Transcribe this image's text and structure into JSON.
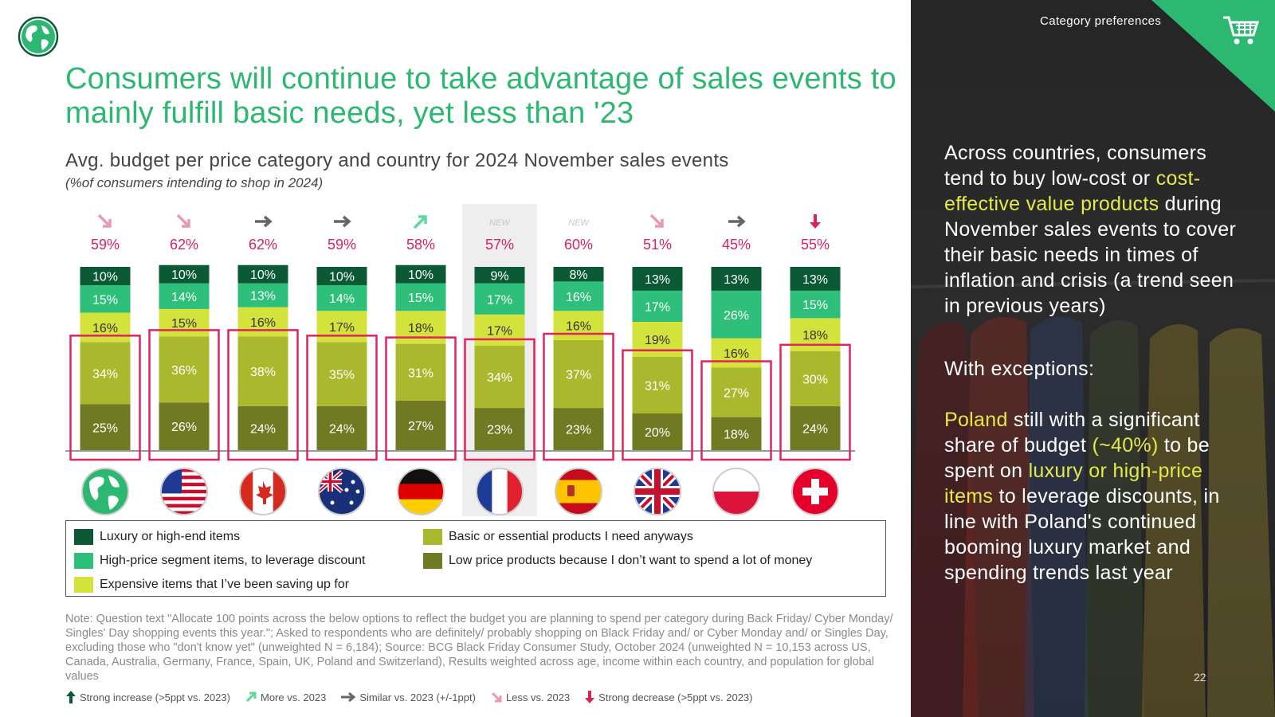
{
  "header": {
    "title": "Consumers will continue to take advantage of sales events to mainly fulfill basic needs, yet less than '23",
    "subtitle": "Avg. budget per price category and country for 2024 November sales events",
    "subnote": "(%of consumers intending to shop in 2024)"
  },
  "colors": {
    "accent": "#2db872",
    "luxury": "#0b5a35",
    "high_price": "#2ebf7a",
    "expensive": "#d4e23c",
    "basic": "#a9b82c",
    "low_price": "#6f7a22",
    "highlight_box": "#e0245e",
    "pct_text": "#d9245a",
    "dark_panel": "#2a2a2a",
    "panel_highlight": "#e5e84a"
  },
  "chart_data": {
    "type": "bar",
    "stacked": true,
    "categories": [
      "Global",
      "US",
      "Canada",
      "Australia",
      "Germany",
      "France",
      "Spain",
      "UK",
      "Poland",
      "Switzerland"
    ],
    "flag_icons": [
      "globe-icon",
      "us-flag-icon",
      "canada-flag-icon",
      "australia-flag-icon",
      "germany-flag-icon",
      "france-flag-icon",
      "spain-flag-icon",
      "uk-flag-icon",
      "poland-flag-icon",
      "switzerland-flag-icon"
    ],
    "top_pct_labels": [
      "59%",
      "62%",
      "62%",
      "59%",
      "58%",
      "57%",
      "60%",
      "51%",
      "45%",
      "55%"
    ],
    "trend": [
      "less",
      "less",
      "similar",
      "similar",
      "more",
      "new",
      "new",
      "less",
      "similar",
      "strong_decrease"
    ],
    "new_label": "NEW",
    "highlighted_category_index": 5,
    "series": [
      {
        "name": "Low price products because I don’t want to spend a lot of money",
        "key": "low_price",
        "values": [
          25,
          26,
          24,
          24,
          27,
          23,
          23,
          20,
          18,
          24
        ]
      },
      {
        "name": "Basic or essential products I need anyways",
        "key": "basic",
        "values": [
          34,
          36,
          38,
          35,
          31,
          34,
          37,
          31,
          27,
          30
        ]
      },
      {
        "name": "Expensive items that I’ve been saving up for",
        "key": "expensive",
        "values": [
          16,
          15,
          16,
          17,
          18,
          17,
          16,
          19,
          16,
          18
        ]
      },
      {
        "name": "High-price segment items, to leverage discount",
        "key": "high_price",
        "values": [
          15,
          14,
          13,
          14,
          15,
          17,
          16,
          17,
          26,
          15
        ]
      },
      {
        "name": "Luxury or high-end items",
        "key": "luxury",
        "values": [
          10,
          10,
          10,
          10,
          10,
          9,
          8,
          13,
          13,
          13
        ]
      }
    ]
  },
  "legend": {
    "items": [
      {
        "label": "Luxury or high-end items",
        "key": "luxury"
      },
      {
        "label": "High-price segment items, to leverage discount",
        "key": "high_price"
      },
      {
        "label": "Expensive items that I’ve been saving up for",
        "key": "expensive"
      },
      {
        "label": "Basic or essential products I need anyways",
        "key": "basic"
      },
      {
        "label": "Low price products because I don’t want to spend a lot of money",
        "key": "low_price"
      }
    ]
  },
  "note": "Note: Question text \"Allocate 100 points across the below options to reflect the budget you are planning to spend per category during Back Friday/ Cyber Monday/ Singles' Day shopping events this year.\"; Asked to respondents who are definitely/ probably shopping on Black Friday and/ or Cyber Monday and/ or Singles Day, excluding those who \"don't know yet\" (unweighted N = 6,184); Source: BCG Black Friday Consumer Study, October 2024 (unweighted N = 10,153 across US, Canada, Australia, Germany, France, Spain, UK, Poland and Switzerland), Results weighted across age, income within each country, and population for global values",
  "arrow_legend": {
    "strong_increase": "Strong increase (>5ppt vs. 2023)",
    "more": "More vs. 2023",
    "similar": "Similar vs. 2023 (+/-1ppt)",
    "less": "Less vs. 2023",
    "strong_decrease": "Strong decrease (>5ppt vs. 2023)"
  },
  "right_panel": {
    "category_label": "Category preferences",
    "p1_a": "Across countries, consumers tend to buy low-cost or ",
    "p1_hl": "cost-effective value products",
    "p1_b": " during November sales events to cover their basic needs in times of inflation and crisis (a trend seen in previous years)",
    "p2": "With exceptions:",
    "p3_hl1": "Poland",
    "p3_a": " still with a significant share of budget ",
    "p3_hl2": "(~40%)",
    "p3_b": " to be spent on ",
    "p3_hl3": "luxury or high-price items",
    "p3_c": " to leverage discounts, in line with Poland's continued booming luxury market and spending trends last year",
    "page_number": "22"
  }
}
